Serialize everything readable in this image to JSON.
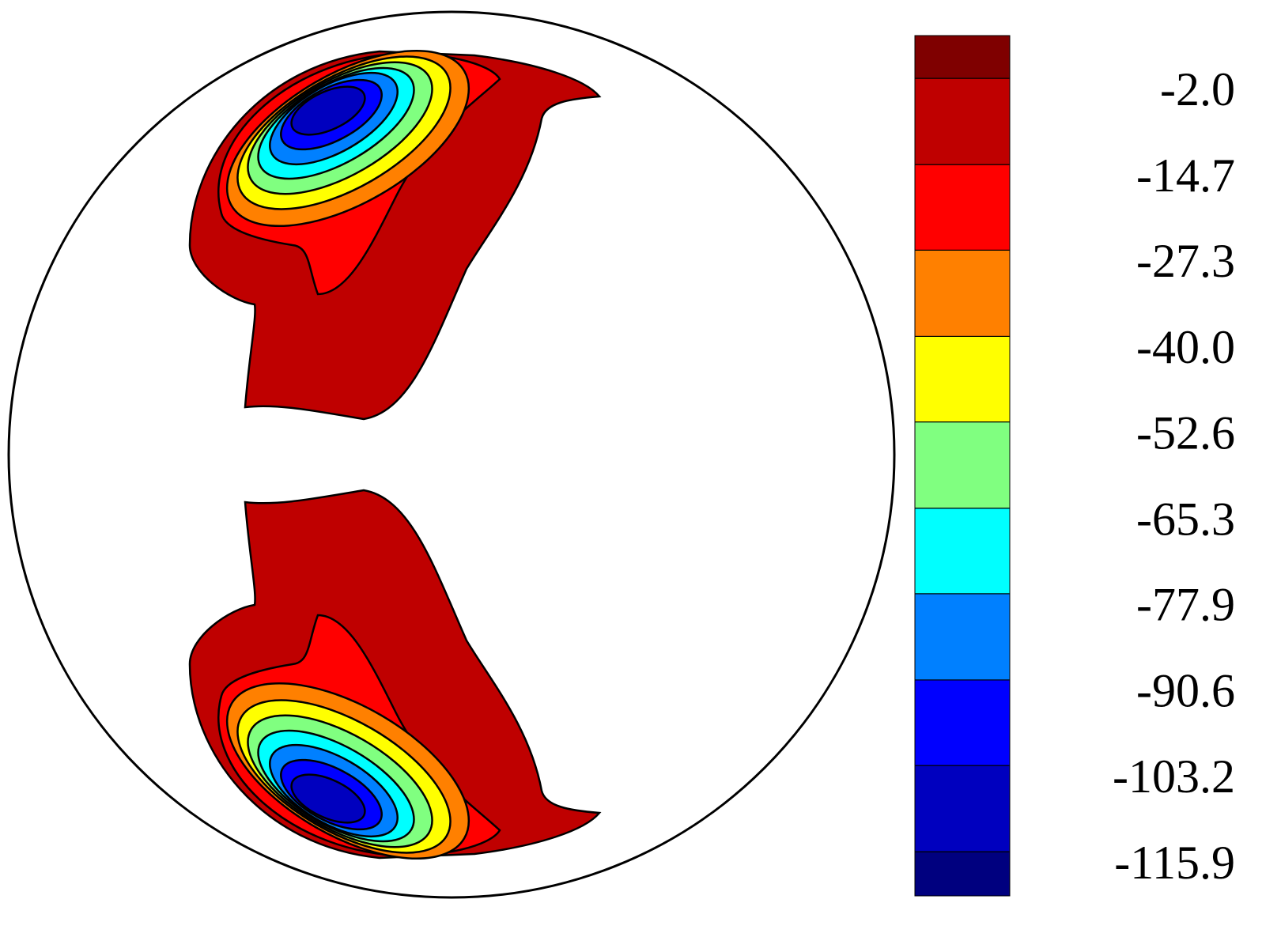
{
  "chart_data": {
    "type": "contour",
    "colorbar": {
      "zlim": [
        -122.4,
        4.3
      ],
      "ticks": [
        {
          "value": -115.9,
          "label": "-115.9"
        },
        {
          "value": -103.2,
          "label": "-103.2"
        },
        {
          "value": -90.6,
          "label": "-90.6"
        },
        {
          "value": -77.9,
          "label": "-77.9"
        },
        {
          "value": -65.3,
          "label": "-65.3"
        },
        {
          "value": -52.6,
          "label": "-52.6"
        },
        {
          "value": -40,
          "label": "-40.0"
        },
        {
          "value": -27.3,
          "label": "-27.3"
        },
        {
          "value": -14.7,
          "label": "-14.7"
        },
        {
          "value": -2,
          "label": "-2.0"
        }
      ],
      "colors": [
        "#00007f",
        "#0000bf",
        "#0000ff",
        "#0080ff",
        "#00ffff",
        "#80ff80",
        "#ffff00",
        "#ff8000",
        "#ff0000",
        "#bf0000",
        "#7f0000"
      ]
    }
  }
}
